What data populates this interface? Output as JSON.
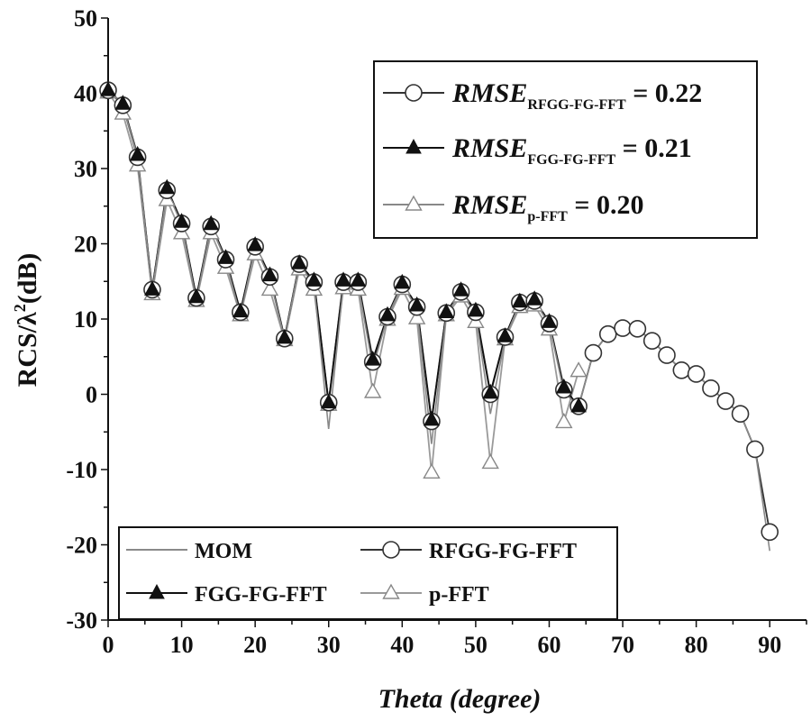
{
  "chart_data": {
    "type": "line",
    "xlabel": "Theta (degree)",
    "xlabel_main": "Theta",
    "xlabel_unit": " (degree)",
    "ylabel": "RCS/λ²(dB)",
    "ylabel_main": "RCS/λ",
    "ylabel_sup": "2",
    "ylabel_unit": "(dB)",
    "xlim": [
      0,
      95
    ],
    "ylim": [
      -30,
      50
    ],
    "x_ticks": [
      "0",
      "10",
      "20",
      "30",
      "40",
      "50",
      "60",
      "70",
      "80",
      "90"
    ],
    "y_ticks": [
      "-30",
      "-20",
      "-10",
      "0",
      "10",
      "20",
      "30",
      "40",
      "50"
    ],
    "grid": false,
    "legend_position": "bottom-left",
    "series": [
      {
        "name": "MOM",
        "marker": "none",
        "color": "#8a8a8a",
        "x": [
          0,
          2,
          4,
          6,
          8,
          10,
          12,
          14,
          16,
          18,
          20,
          22,
          24,
          26,
          28,
          30,
          32,
          34,
          36,
          38,
          40,
          42,
          44,
          46,
          48,
          50,
          52,
          54,
          56,
          58,
          60,
          62,
          64,
          66,
          68,
          70,
          72,
          74,
          76,
          78,
          80,
          82,
          84,
          86,
          88,
          90
        ],
        "y": [
          40.6,
          38.4,
          31.6,
          13.6,
          27,
          22.6,
          12.4,
          22.4,
          17.8,
          10.4,
          19.6,
          15.4,
          7.3,
          17.2,
          14.6,
          -4.6,
          14.6,
          14.6,
          3.6,
          10.2,
          14.6,
          11.4,
          -6.6,
          10.6,
          13.6,
          10.6,
          -2.6,
          7.4,
          12.1,
          12.4,
          9.3,
          0.3,
          -1.6,
          5.5,
          8.0,
          8.8,
          8.7,
          7.1,
          5.2,
          3.2,
          2.7,
          0.8,
          -0.9,
          -2.6,
          -7.3,
          -20.8
        ]
      },
      {
        "name": "RFGG-FG-FFT",
        "marker": "open-circle",
        "color": "#333333",
        "x": [
          0,
          2,
          4,
          6,
          8,
          10,
          12,
          14,
          16,
          18,
          20,
          22,
          24,
          26,
          28,
          30,
          32,
          34,
          36,
          38,
          40,
          42,
          44,
          46,
          48,
          50,
          52,
          54,
          56,
          58,
          60,
          62,
          64,
          66,
          68,
          70,
          72,
          74,
          76,
          78,
          80,
          82,
          84,
          86,
          88,
          90
        ],
        "y": [
          40.4,
          38.4,
          31.5,
          13.9,
          27.1,
          22.7,
          12.8,
          22.3,
          17.9,
          10.9,
          19.6,
          15.6,
          7.4,
          17.3,
          14.9,
          -1.1,
          14.9,
          14.9,
          4.3,
          10.3,
          14.6,
          11.6,
          -3.6,
          10.8,
          13.6,
          10.9,
          0.0,
          7.6,
          12.2,
          12.4,
          9.4,
          0.6,
          -1.6,
          5.5,
          8.0,
          8.8,
          8.7,
          7.1,
          5.2,
          3.2,
          2.7,
          0.8,
          -0.9,
          -2.6,
          -7.3,
          -18.3
        ]
      },
      {
        "name": "FGG-FG-FFT",
        "marker": "filled-triangle",
        "color": "#111111",
        "x": [
          0,
          2,
          4,
          6,
          8,
          10,
          12,
          14,
          16,
          18,
          20,
          22,
          24,
          26,
          28,
          30,
          32,
          34,
          36,
          38,
          40,
          42,
          44,
          46,
          48,
          50,
          52,
          54,
          56,
          58,
          60,
          62,
          64
        ],
        "y": [
          40.4,
          38.6,
          31.8,
          13.9,
          27.4,
          22.9,
          12.9,
          22.6,
          18.1,
          11.0,
          19.8,
          15.8,
          7.5,
          17.4,
          15.1,
          -1.1,
          15.1,
          15.1,
          4.6,
          10.5,
          14.8,
          11.8,
          -3.4,
          10.9,
          13.8,
          11.1,
          0.2,
          7.7,
          12.3,
          12.6,
          9.6,
          0.9,
          -1.6
        ]
      },
      {
        "name": "p-FFT",
        "marker": "open-triangle",
        "color": "#9a9a9a",
        "x": [
          0,
          2,
          4,
          6,
          8,
          10,
          12,
          14,
          16,
          18,
          20,
          22,
          24,
          26,
          28,
          30,
          32,
          34,
          36,
          38,
          40,
          42,
          44,
          46,
          48,
          50,
          52,
          54,
          56,
          58,
          60,
          62,
          64
        ],
        "y": [
          40.1,
          37.3,
          30.4,
          13.3,
          25.8,
          21.4,
          12.4,
          21.4,
          16.8,
          10.5,
          18.6,
          13.9,
          7.2,
          16.6,
          13.9,
          -1.4,
          14.1,
          13.9,
          0.3,
          9.9,
          14.0,
          10.1,
          -10.4,
          10.5,
          13.0,
          9.6,
          -9.1,
          7.3,
          11.6,
          11.8,
          8.6,
          -3.7,
          3.1
        ]
      }
    ],
    "rmse_box": {
      "position": "top-right",
      "entries": [
        {
          "label": "RMSE",
          "sub": "RFGG-FG-FFT",
          "value": "= 0.22",
          "marker": "open-circle"
        },
        {
          "label": "RMSE",
          "sub": "FGG-FG-FFT",
          "value": "=  0.21",
          "marker": "filled-triangle"
        },
        {
          "label": "RMSE",
          "sub": "p-FFT",
          "value": "= 0.20",
          "marker": "open-triangle"
        }
      ]
    }
  }
}
